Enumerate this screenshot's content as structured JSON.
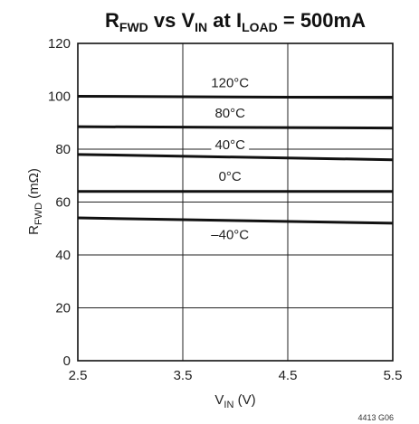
{
  "chart_data": {
    "type": "line",
    "title": {
      "r": "R",
      "r_sub": "FWD",
      "vs": " vs V",
      "v_sub": "IN",
      "at": " at I",
      "i_sub": "LOAD",
      "end": " = 500mA"
    },
    "xlabel": {
      "main": "V",
      "sub": "IN",
      "unit": " (V)"
    },
    "ylabel": {
      "main": "R",
      "sub": "FWD",
      "unit": " (mΩ)"
    },
    "xlim": [
      2.5,
      5.5
    ],
    "ylim": [
      0,
      120
    ],
    "x_ticks": [
      "2.5",
      "3.5",
      "4.5",
      "5.5"
    ],
    "y_ticks": [
      "0",
      "20",
      "40",
      "60",
      "80",
      "100",
      "120"
    ],
    "grid": true,
    "series": [
      {
        "name": "120°C",
        "x": [
          2.5,
          5.5
        ],
        "y": [
          100,
          99.5
        ],
        "label_x": 3.95,
        "label_y": 103.5
      },
      {
        "name": "80°C",
        "x": [
          2.5,
          5.5
        ],
        "y": [
          88.5,
          88
        ],
        "label_x": 3.95,
        "label_y": 92
      },
      {
        "name": "40°C",
        "x": [
          2.5,
          5.5
        ],
        "y": [
          78,
          76
        ],
        "label_x": 3.95,
        "label_y": 80
      },
      {
        "name": "0°C",
        "x": [
          2.5,
          5.5
        ],
        "y": [
          64,
          64
        ],
        "label_x": 3.95,
        "label_y": 68
      },
      {
        "name": "–40°C",
        "x": [
          2.5,
          5.5
        ],
        "y": [
          54,
          52
        ],
        "label_x": 3.95,
        "label_y": 46
      }
    ],
    "figure_code": "4413 G06"
  }
}
